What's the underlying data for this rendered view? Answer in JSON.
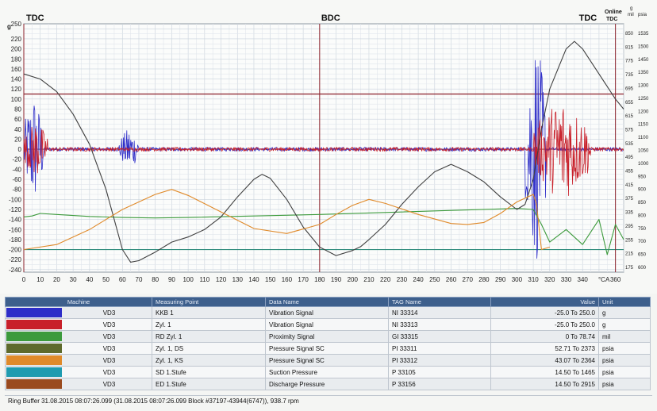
{
  "chart_data": {
    "type": "line",
    "xlabel": "°CA",
    "xlim": [
      0,
      365
    ],
    "xticks": [
      0,
      10,
      20,
      30,
      40,
      50,
      60,
      70,
      80,
      90,
      100,
      110,
      120,
      130,
      140,
      150,
      160,
      170,
      180,
      190,
      200,
      210,
      220,
      230,
      240,
      250,
      260,
      270,
      280,
      290,
      300,
      310,
      320,
      330,
      340,
      360
    ],
    "ylabel": "g",
    "ylim": [
      -245,
      250
    ],
    "yticks": [
      250,
      220,
      200,
      180,
      160,
      140,
      120,
      100,
      80,
      60,
      40,
      20,
      0,
      -20,
      -40,
      -60,
      -80,
      -100,
      -120,
      -140,
      -160,
      -180,
      -200,
      -220,
      -240
    ],
    "right_axes": [
      {
        "label": "mil",
        "ticks": [
          "850",
          "815",
          "775",
          "735",
          "695",
          "655",
          "615",
          "575",
          "535",
          "495",
          "455",
          "415",
          "375",
          "335",
          "295",
          "255",
          "215",
          "175"
        ]
      },
      {
        "label": "psia",
        "ticks": [
          "1535",
          "1500",
          "1450",
          "1350",
          "1300",
          "1250",
          "1200",
          "1150",
          "1100",
          "1050",
          "1000",
          "950",
          "900",
          "850",
          "800",
          "750",
          "700",
          "650",
          "600"
        ]
      }
    ],
    "right_axis_header": {
      "line1": "g",
      "line2": "mil",
      "line3": "psia",
      "online": "Online",
      "tdc": "TDC"
    },
    "markers": [
      {
        "label": "TDC",
        "x": 0
      },
      {
        "label": "BDC",
        "x": 180
      },
      {
        "label": "TDC",
        "x": 360
      }
    ],
    "reference_lines_y": [
      110,
      -200
    ],
    "grid": true,
    "series": [
      {
        "name": "VD3 KKB 1",
        "color": "#2d2dc8",
        "kind": "vibration",
        "bursts": [
          [
            0,
            12,
            120
          ],
          [
            58,
            70,
            45
          ],
          [
            305,
            318,
            240
          ]
        ]
      },
      {
        "name": "VD3 Zyl. 1",
        "color": "#c8202a",
        "kind": "vibration",
        "bursts": [
          [
            0,
            15,
            60
          ],
          [
            310,
            345,
            110
          ]
        ]
      },
      {
        "name": "VD3 RD Zyl. 1",
        "color": "#3c9a3c",
        "x": [
          0,
          5,
          10,
          20,
          40,
          60,
          80,
          100,
          140,
          180,
          220,
          260,
          300,
          310,
          315,
          320,
          330,
          340,
          350,
          355,
          360,
          365
        ],
        "y": [
          -135,
          -133,
          -128,
          -130,
          -134,
          -136,
          -137,
          -136,
          -133,
          -130,
          -126,
          -122,
          -118,
          -120,
          -150,
          -185,
          -160,
          -190,
          -140,
          -210,
          -150,
          -180
        ]
      },
      {
        "name": "VD3 Zyl. 1, DS",
        "color": "#404040",
        "x": [
          0,
          10,
          20,
          30,
          40,
          50,
          60,
          65,
          70,
          80,
          90,
          100,
          110,
          120,
          130,
          140,
          145,
          150,
          160,
          170,
          180,
          190,
          200,
          205,
          210,
          220,
          230,
          240,
          250,
          260,
          270,
          275,
          280,
          290,
          300,
          305,
          310,
          315,
          320,
          330,
          335,
          340,
          350,
          360,
          365
        ],
        "y": [
          150,
          140,
          115,
          70,
          10,
          -80,
          -200,
          -225,
          -222,
          -205,
          -185,
          -175,
          -160,
          -135,
          -95,
          -60,
          -50,
          -58,
          -100,
          -155,
          -195,
          -212,
          -202,
          -194,
          -180,
          -150,
          -110,
          -75,
          -45,
          -30,
          -45,
          -55,
          -65,
          -95,
          -120,
          -110,
          -60,
          40,
          120,
          200,
          215,
          200,
          150,
          100,
          80
        ]
      },
      {
        "name": "VD3 Zyl. 1, KS",
        "color": "#e08a2a",
        "x": [
          0,
          20,
          40,
          60,
          80,
          90,
          100,
          120,
          140,
          160,
          180,
          190,
          200,
          210,
          220,
          240,
          260,
          270,
          280,
          290,
          300,
          310,
          312,
          315,
          320
        ],
        "y": [
          -200,
          -190,
          -160,
          -120,
          -90,
          -80,
          -92,
          -125,
          -158,
          -168,
          -150,
          -130,
          -112,
          -100,
          -108,
          -130,
          -148,
          -150,
          -146,
          -128,
          -105,
          -90,
          -110,
          -200,
          -195
        ]
      }
    ]
  },
  "table": {
    "headers": [
      "Machine",
      "Measuring Point",
      "Data Name",
      "TAG Name",
      "Value",
      "Unit"
    ],
    "rows": [
      {
        "color": "#2d2dc8",
        "machine": "VD3",
        "point": "KKB 1",
        "data": "Vibration Signal",
        "tag": "NI 33314",
        "value": "-25.0 To 250.0",
        "unit": "g"
      },
      {
        "color": "#c8202a",
        "machine": "VD3",
        "point": "Zyl. 1",
        "data": "Vibration Signal",
        "tag": "NI 33313",
        "value": "-25.0 To 250.0",
        "unit": "g"
      },
      {
        "color": "#3c9a3c",
        "machine": "VD3",
        "point": "RD Zyl. 1",
        "data": "Proximity Signal",
        "tag": "GI 33315",
        "value": "0 To 78.74",
        "unit": "mil"
      },
      {
        "color": "#5e6a2c",
        "machine": "VD3",
        "point": "Zyl. 1, DS",
        "data": "Pressure Signal SC",
        "tag": "PI 33311",
        "value": "52.71 To 2373",
        "unit": "psia"
      },
      {
        "color": "#e08a2a",
        "machine": "VD3",
        "point": "Zyl. 1, KS",
        "data": "Pressure Signal SC",
        "tag": "PI 33312",
        "value": "43.07 To 2364",
        "unit": "psia"
      },
      {
        "color": "#1f9bb0",
        "machine": "VD3",
        "point": "SD 1.Stufe",
        "data": "Suction Pressure",
        "tag": "P 33105",
        "value": "14.50 To 1465",
        "unit": "psia"
      },
      {
        "color": "#9a4a1e",
        "machine": "VD3",
        "point": "ED 1.Stufe",
        "data": "Discharge Pressure",
        "tag": "P 33156",
        "value": "14.50 To 2915",
        "unit": "psia"
      }
    ]
  },
  "status": "Ring Buffer 31.08.2015 08:07:26.099 (31.08.2015 08:07:26.099 Block #37197-43944(6747)), 938.7 rpm"
}
